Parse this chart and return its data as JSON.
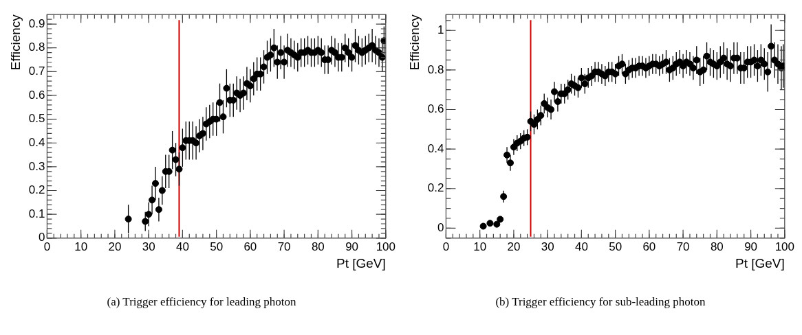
{
  "chart_data": [
    {
      "type": "scatter",
      "xlabel": "Pt [GeV]",
      "ylabel": "Efficiency",
      "marker": "circle",
      "color": "#000000",
      "x": [
        24,
        29,
        30,
        31,
        32,
        33,
        34,
        35,
        36,
        37,
        38,
        39,
        40,
        41,
        42,
        43,
        44,
        45,
        46,
        47,
        48,
        49,
        50,
        51,
        52,
        53,
        54,
        55,
        56,
        57,
        58,
        59,
        60,
        61,
        62,
        63,
        64,
        65,
        66,
        67,
        68,
        69,
        70,
        71,
        72,
        73,
        74,
        75,
        76,
        77,
        78,
        79,
        80,
        81,
        82,
        83,
        84,
        85,
        86,
        87,
        88,
        89,
        90,
        91,
        92,
        93,
        94,
        95,
        96,
        97,
        98,
        99,
        99.5
      ],
      "values": [
        0.08,
        0.07,
        0.1,
        0.16,
        0.23,
        0.12,
        0.2,
        0.28,
        0.28,
        0.37,
        0.33,
        0.29,
        0.38,
        0.41,
        0.41,
        0.41,
        0.4,
        0.43,
        0.44,
        0.48,
        0.49,
        0.5,
        0.5,
        0.57,
        0.51,
        0.63,
        0.58,
        0.58,
        0.61,
        0.6,
        0.61,
        0.65,
        0.64,
        0.67,
        0.69,
        0.69,
        0.72,
        0.76,
        0.77,
        0.8,
        0.74,
        0.78,
        0.74,
        0.79,
        0.78,
        0.77,
        0.76,
        0.78,
        0.78,
        0.79,
        0.78,
        0.78,
        0.79,
        0.78,
        0.75,
        0.75,
        0.79,
        0.78,
        0.76,
        0.76,
        0.8,
        0.78,
        0.76,
        0.81,
        0.79,
        0.78,
        0.79,
        0.8,
        0.81,
        0.79,
        0.78,
        0.76,
        0.83
      ],
      "errors": [
        0.06,
        0.04,
        0.05,
        0.06,
        0.07,
        0.05,
        0.06,
        0.07,
        0.07,
        0.08,
        0.07,
        0.07,
        0.08,
        0.08,
        0.08,
        0.08,
        0.07,
        0.07,
        0.07,
        0.07,
        0.07,
        0.07,
        0.07,
        0.08,
        0.07,
        0.08,
        0.07,
        0.07,
        0.07,
        0.07,
        0.07,
        0.07,
        0.07,
        0.07,
        0.07,
        0.07,
        0.07,
        0.07,
        0.07,
        0.08,
        0.07,
        0.07,
        0.07,
        0.07,
        0.06,
        0.06,
        0.06,
        0.06,
        0.06,
        0.06,
        0.06,
        0.06,
        0.06,
        0.06,
        0.06,
        0.06,
        0.06,
        0.06,
        0.06,
        0.06,
        0.06,
        0.06,
        0.06,
        0.07,
        0.06,
        0.06,
        0.06,
        0.06,
        0.07,
        0.06,
        0.06,
        0.06,
        0.06
      ],
      "xlim": [
        0,
        100
      ],
      "xticks": [
        0,
        10,
        20,
        30,
        40,
        50,
        60,
        70,
        80,
        90,
        100
      ],
      "ylim": [
        0,
        0.94
      ],
      "yticks": [
        0,
        0.1,
        0.2,
        0.3,
        0.4,
        0.5,
        0.6,
        0.7,
        0.8,
        0.9
      ],
      "ref_lines": [
        {
          "axis": "x",
          "value": 39,
          "color": "#cc0000"
        }
      ],
      "annotations": [
        "(a) Trigger efficiency for leading photon"
      ]
    },
    {
      "type": "scatter",
      "xlabel": "Pt [GeV]",
      "ylabel": "Efficiency",
      "marker": "circle",
      "color": "#000000",
      "x": [
        11,
        13,
        15,
        16,
        17,
        18,
        19,
        20,
        21,
        22,
        23,
        24,
        25,
        26,
        27,
        28,
        29,
        30,
        31,
        32,
        33,
        34,
        35,
        36,
        37,
        38,
        39,
        40,
        41,
        42,
        43,
        44,
        45,
        46,
        47,
        48,
        49,
        50,
        51,
        52,
        53,
        54,
        55,
        56,
        57,
        58,
        59,
        60,
        61,
        62,
        63,
        64,
        65,
        66,
        67,
        68,
        69,
        70,
        71,
        72,
        73,
        74,
        75,
        76,
        77,
        78,
        79,
        80,
        81,
        82,
        83,
        84,
        85,
        86,
        87,
        88,
        89,
        90,
        91,
        92,
        93,
        94,
        95,
        96,
        97,
        98,
        99,
        99.6
      ],
      "values": [
        0.01,
        0.025,
        0.02,
        0.045,
        0.16,
        0.37,
        0.33,
        0.41,
        0.43,
        0.44,
        0.455,
        0.46,
        0.54,
        0.525,
        0.55,
        0.57,
        0.63,
        0.61,
        0.6,
        0.69,
        0.64,
        0.68,
        0.68,
        0.7,
        0.73,
        0.72,
        0.71,
        0.76,
        0.73,
        0.76,
        0.77,
        0.79,
        0.79,
        0.78,
        0.77,
        0.79,
        0.79,
        0.78,
        0.82,
        0.83,
        0.78,
        0.8,
        0.81,
        0.81,
        0.82,
        0.82,
        0.81,
        0.82,
        0.83,
        0.83,
        0.82,
        0.83,
        0.84,
        0.8,
        0.81,
        0.83,
        0.84,
        0.82,
        0.84,
        0.83,
        0.81,
        0.85,
        0.79,
        0.8,
        0.87,
        0.84,
        0.83,
        0.82,
        0.84,
        0.86,
        0.83,
        0.82,
        0.86,
        0.86,
        0.81,
        0.81,
        0.84,
        0.84,
        0.85,
        0.82,
        0.85,
        0.83,
        0.79,
        0.92,
        0.85,
        0.83,
        0.81,
        0.82
      ],
      "errors": [
        0.01,
        0.01,
        0.01,
        0.015,
        0.03,
        0.04,
        0.04,
        0.04,
        0.04,
        0.04,
        0.04,
        0.04,
        0.05,
        0.05,
        0.05,
        0.05,
        0.05,
        0.05,
        0.05,
        0.05,
        0.05,
        0.05,
        0.05,
        0.05,
        0.05,
        0.05,
        0.05,
        0.05,
        0.05,
        0.05,
        0.05,
        0.05,
        0.05,
        0.05,
        0.05,
        0.05,
        0.05,
        0.05,
        0.05,
        0.05,
        0.05,
        0.05,
        0.05,
        0.05,
        0.05,
        0.05,
        0.05,
        0.05,
        0.05,
        0.05,
        0.05,
        0.05,
        0.06,
        0.06,
        0.06,
        0.06,
        0.06,
        0.06,
        0.06,
        0.06,
        0.06,
        0.07,
        0.07,
        0.07,
        0.07,
        0.07,
        0.07,
        0.07,
        0.08,
        0.08,
        0.08,
        0.08,
        0.08,
        0.08,
        0.08,
        0.08,
        0.08,
        0.08,
        0.08,
        0.08,
        0.08,
        0.08,
        0.1,
        0.11,
        0.09,
        0.1,
        0.11,
        0.11
      ],
      "xlim": [
        0,
        100
      ],
      "xticks": [
        0,
        10,
        20,
        30,
        40,
        50,
        60,
        70,
        80,
        90,
        100
      ],
      "ylim": [
        -0.05,
        1.08
      ],
      "yticks": [
        0,
        0.2,
        0.4,
        0.6,
        0.8,
        1
      ],
      "ref_lines": [
        {
          "axis": "x",
          "value": 25,
          "color": "#cc0000"
        }
      ],
      "annotations": [
        "(b) Trigger efficiency for sub-leading photon"
      ]
    }
  ]
}
